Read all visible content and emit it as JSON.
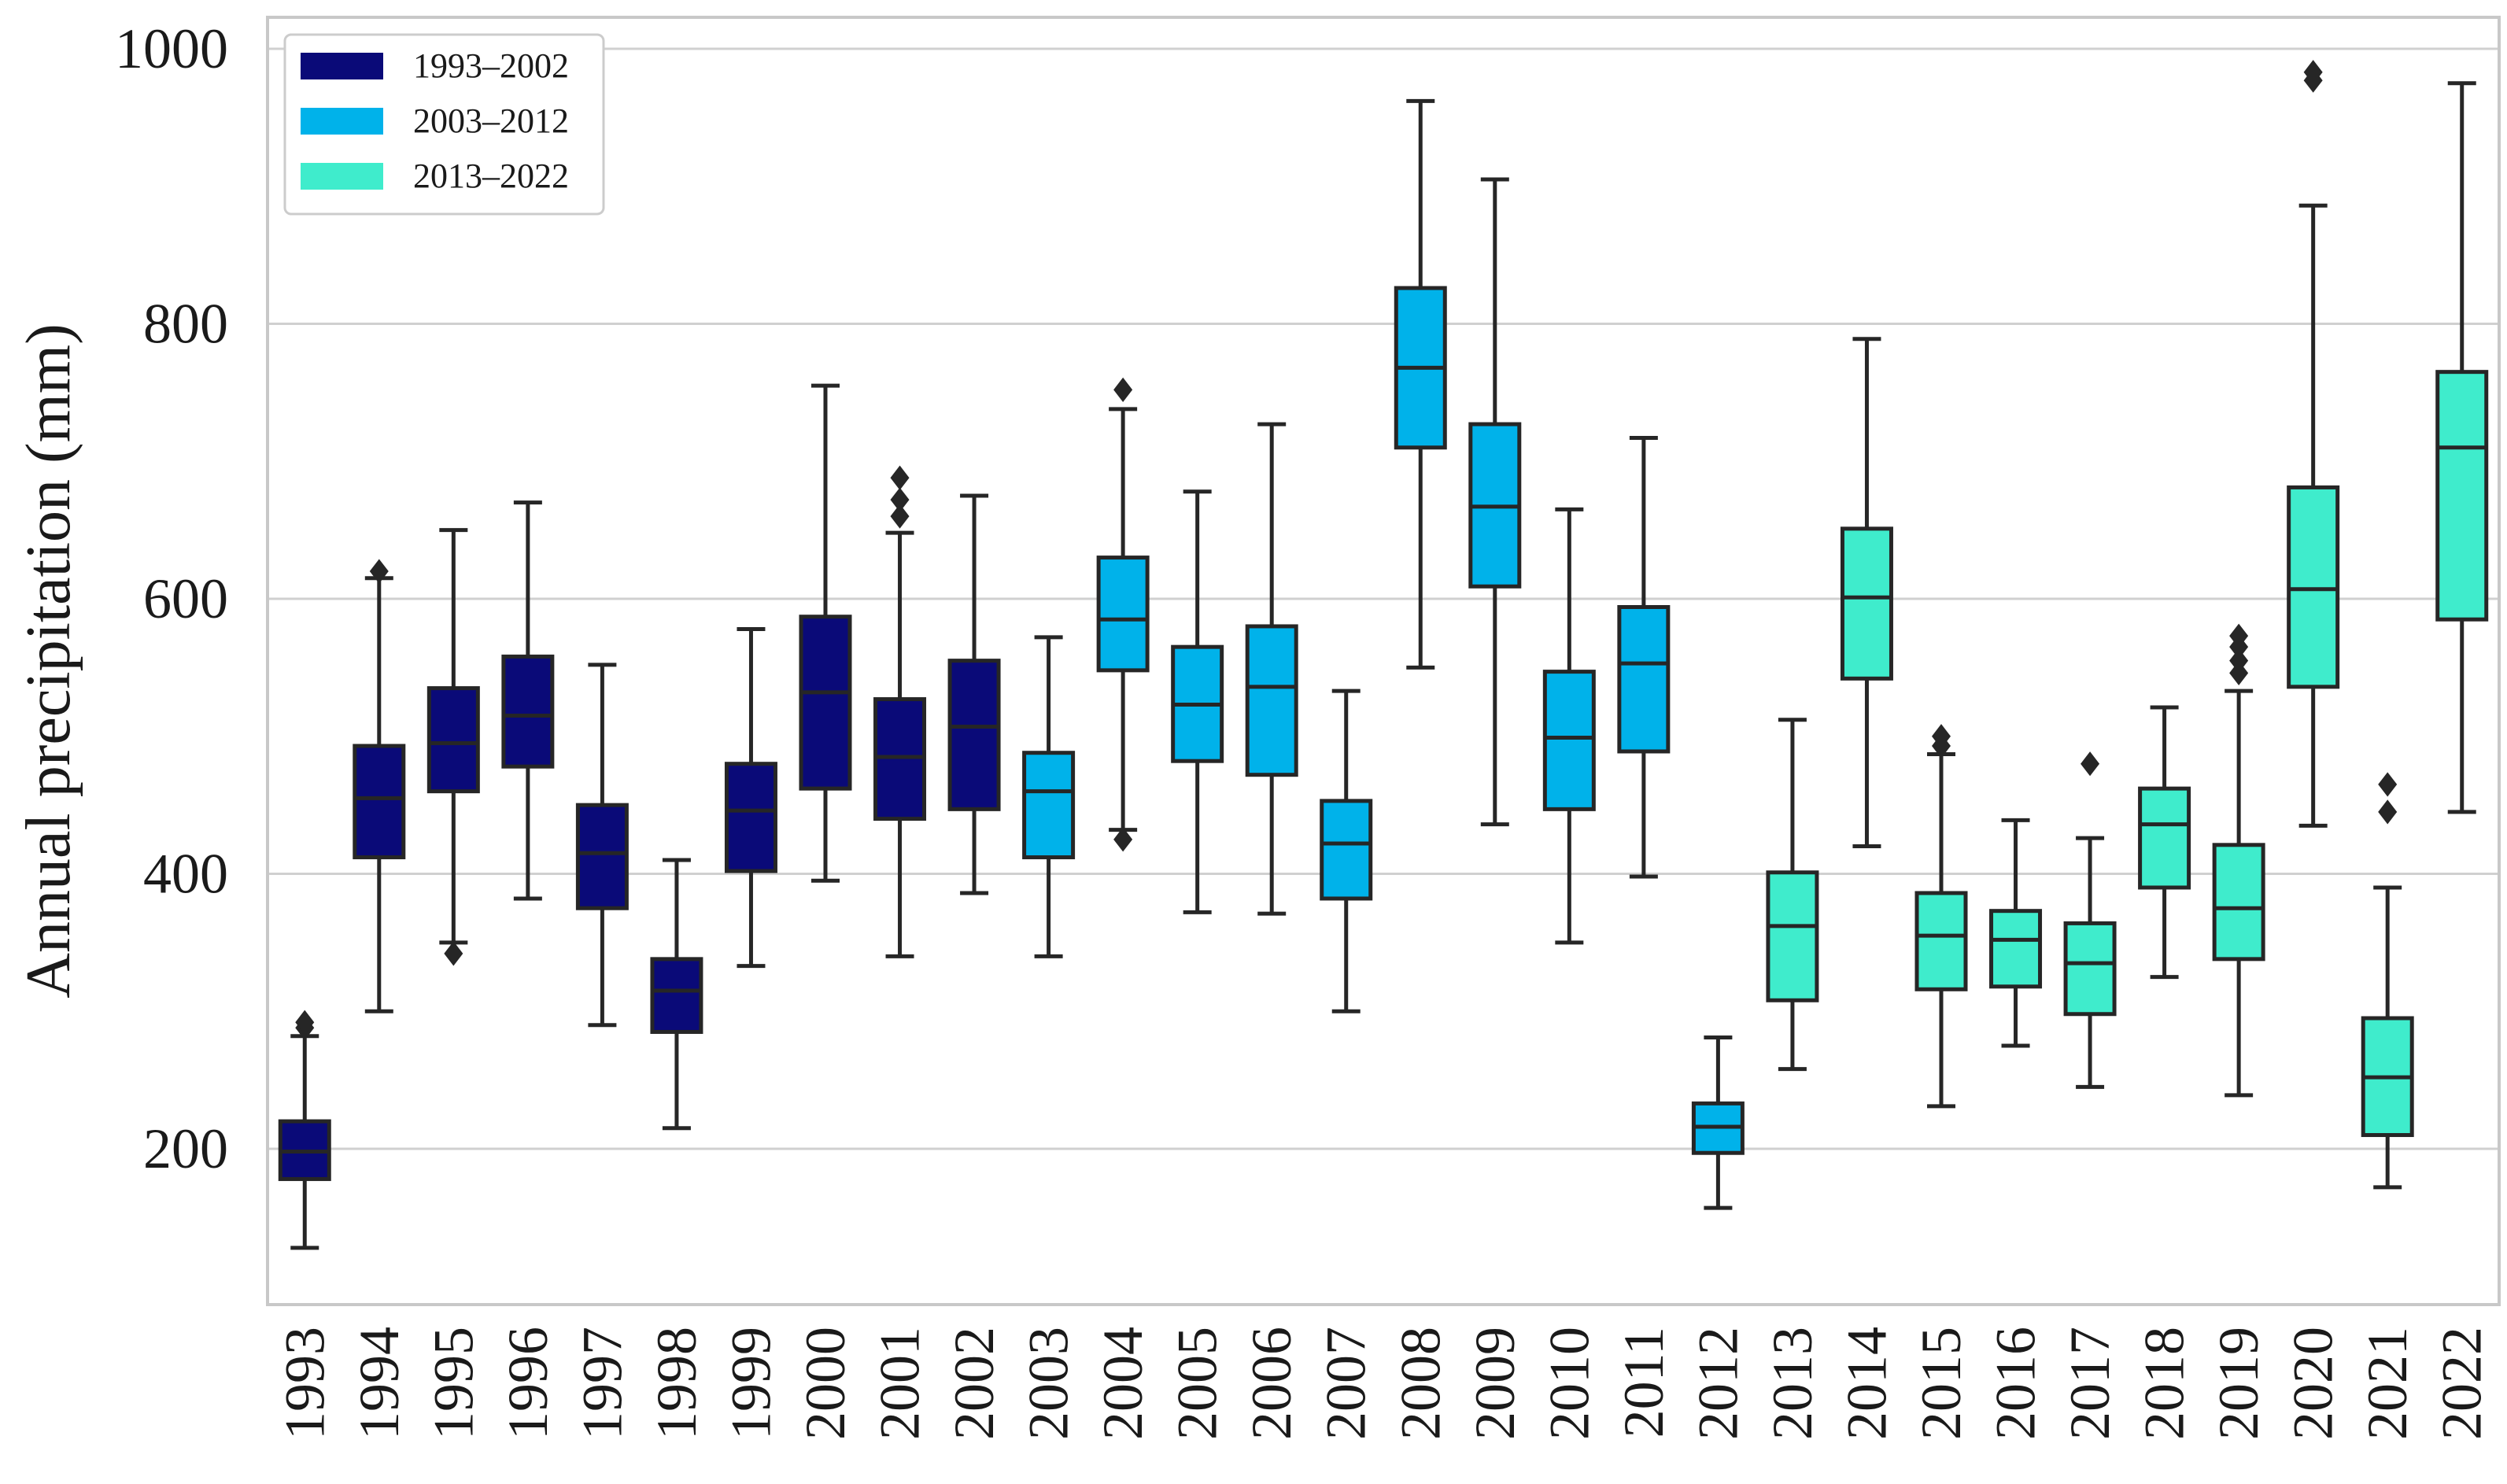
{
  "chart_data": {
    "type": "box",
    "title": "",
    "xlabel": "",
    "ylabel": "Annual precipitation (mm)",
    "ylim": [
      90,
      1030
    ],
    "yticks": [
      200,
      400,
      600,
      800,
      1000
    ],
    "grid": "horizontal",
    "legend_position": "top-left",
    "legend": [
      {
        "label": "1993–2002",
        "color": "#0a0a78"
      },
      {
        "label": "2003–2012",
        "color": "#00b2ea"
      },
      {
        "label": "2013–2022",
        "color": "#3feccc"
      }
    ],
    "categories": [
      "1993",
      "1994",
      "1995",
      "1996",
      "1997",
      "1998",
      "1999",
      "2000",
      "2001",
      "2002",
      "2003",
      "2004",
      "2005",
      "2006",
      "2007",
      "2008",
      "2009",
      "2010",
      "2011",
      "2012",
      "2013",
      "2014",
      "2015",
      "2016",
      "2017",
      "2018",
      "2019",
      "2020",
      "2021",
      "2022"
    ],
    "boxes": [
      {
        "year": "1993",
        "group": 0,
        "whislo": 128,
        "q1": 178,
        "med": 198,
        "q3": 220,
        "whishi": 282,
        "fliers": [
          288,
          292
        ]
      },
      {
        "year": "1994",
        "group": 0,
        "whislo": 300,
        "q1": 412,
        "med": 455,
        "q3": 493,
        "whishi": 615,
        "fliers": [
          620
        ]
      },
      {
        "year": "1995",
        "group": 0,
        "whislo": 350,
        "q1": 460,
        "med": 495,
        "q3": 535,
        "whishi": 650,
        "fliers": [
          342
        ]
      },
      {
        "year": "1996",
        "group": 0,
        "whislo": 382,
        "q1": 478,
        "med": 515,
        "q3": 558,
        "whishi": 670,
        "fliers": []
      },
      {
        "year": "1997",
        "group": 0,
        "whislo": 290,
        "q1": 375,
        "med": 415,
        "q3": 450,
        "whishi": 552,
        "fliers": []
      },
      {
        "year": "1998",
        "group": 0,
        "whislo": 215,
        "q1": 285,
        "med": 315,
        "q3": 338,
        "whishi": 410,
        "fliers": []
      },
      {
        "year": "1999",
        "group": 0,
        "whislo": 333,
        "q1": 402,
        "med": 446,
        "q3": 480,
        "whishi": 578,
        "fliers": []
      },
      {
        "year": "2000",
        "group": 0,
        "whislo": 395,
        "q1": 462,
        "med": 532,
        "q3": 587,
        "whishi": 755,
        "fliers": []
      },
      {
        "year": "2001",
        "group": 0,
        "whislo": 340,
        "q1": 440,
        "med": 485,
        "q3": 527,
        "whishi": 648,
        "fliers": [
          660,
          672,
          688
        ]
      },
      {
        "year": "2002",
        "group": 0,
        "whislo": 386,
        "q1": 447,
        "med": 507,
        "q3": 555,
        "whishi": 675,
        "fliers": []
      },
      {
        "year": "2003",
        "group": 1,
        "whislo": 340,
        "q1": 412,
        "med": 460,
        "q3": 488,
        "whishi": 572,
        "fliers": []
      },
      {
        "year": "2004",
        "group": 1,
        "whislo": 432,
        "q1": 548,
        "med": 585,
        "q3": 630,
        "whishi": 738,
        "fliers": [
          425,
          752
        ]
      },
      {
        "year": "2005",
        "group": 1,
        "whislo": 372,
        "q1": 482,
        "med": 523,
        "q3": 565,
        "whishi": 678,
        "fliers": []
      },
      {
        "year": "2006",
        "group": 1,
        "whislo": 371,
        "q1": 472,
        "med": 536,
        "q3": 580,
        "whishi": 727,
        "fliers": []
      },
      {
        "year": "2007",
        "group": 1,
        "whislo": 300,
        "q1": 382,
        "med": 422,
        "q3": 453,
        "whishi": 533,
        "fliers": []
      },
      {
        "year": "2008",
        "group": 1,
        "whislo": 550,
        "q1": 710,
        "med": 768,
        "q3": 826,
        "whishi": 962,
        "fliers": []
      },
      {
        "year": "2009",
        "group": 1,
        "whislo": 436,
        "q1": 609,
        "med": 667,
        "q3": 727,
        "whishi": 905,
        "fliers": []
      },
      {
        "year": "2010",
        "group": 1,
        "whislo": 350,
        "q1": 447,
        "med": 499,
        "q3": 547,
        "whishi": 665,
        "fliers": []
      },
      {
        "year": "2011",
        "group": 1,
        "whislo": 398,
        "q1": 489,
        "med": 553,
        "q3": 594,
        "whishi": 717,
        "fliers": []
      },
      {
        "year": "2012",
        "group": 1,
        "whislo": 157,
        "q1": 197,
        "med": 216,
        "q3": 233,
        "whishi": 281,
        "fliers": []
      },
      {
        "year": "2013",
        "group": 2,
        "whislo": 258,
        "q1": 308,
        "med": 362,
        "q3": 401,
        "whishi": 512,
        "fliers": []
      },
      {
        "year": "2014",
        "group": 2,
        "whislo": 420,
        "q1": 542,
        "med": 601,
        "q3": 651,
        "whishi": 789,
        "fliers": []
      },
      {
        "year": "2015",
        "group": 2,
        "whislo": 231,
        "q1": 316,
        "med": 355,
        "q3": 386,
        "whishi": 487,
        "fliers": [
          493,
          500
        ]
      },
      {
        "year": "2016",
        "group": 2,
        "whislo": 275,
        "q1": 318,
        "med": 352,
        "q3": 373,
        "whishi": 439,
        "fliers": []
      },
      {
        "year": "2017",
        "group": 2,
        "whislo": 245,
        "q1": 298,
        "med": 335,
        "q3": 364,
        "whishi": 426,
        "fliers": [
          480
        ]
      },
      {
        "year": "2018",
        "group": 2,
        "whislo": 325,
        "q1": 390,
        "med": 436,
        "q3": 462,
        "whishi": 521,
        "fliers": []
      },
      {
        "year": "2019",
        "group": 2,
        "whislo": 239,
        "q1": 338,
        "med": 375,
        "q3": 421,
        "whishi": 533,
        "fliers": [
          546,
          555,
          565,
          573
        ]
      },
      {
        "year": "2020",
        "group": 2,
        "whislo": 435,
        "q1": 536,
        "med": 607,
        "q3": 681,
        "whishi": 886,
        "fliers": [
          977,
          983
        ]
      },
      {
        "year": "2021",
        "group": 2,
        "whislo": 172,
        "q1": 210,
        "med": 252,
        "q3": 295,
        "whishi": 390,
        "fliers": [
          445,
          465
        ]
      },
      {
        "year": "2022",
        "group": 2,
        "whislo": 445,
        "q1": 585,
        "med": 710,
        "q3": 765,
        "whishi": 975,
        "fliers": []
      }
    ]
  }
}
